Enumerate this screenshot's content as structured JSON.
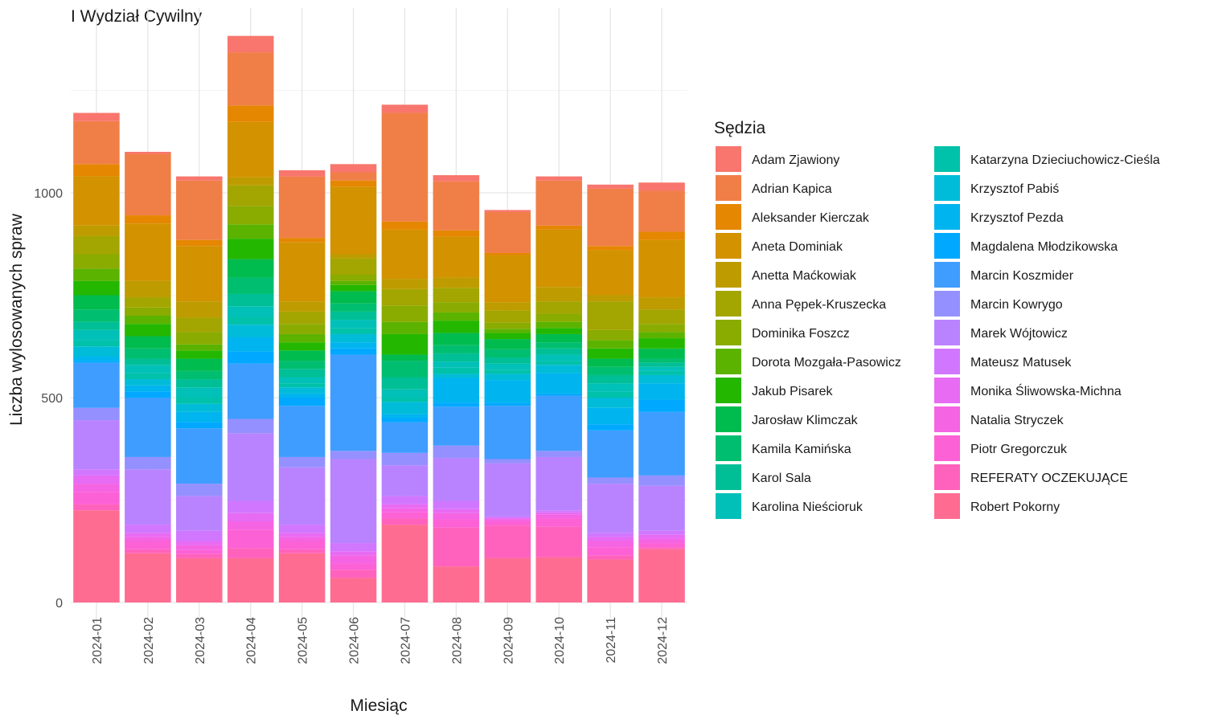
{
  "chart_data": {
    "type": "bar",
    "stacked": true,
    "title": "I Wydział Cywilny",
    "xlabel": "Miesiąc",
    "ylabel": "Liczba wylosowanych spraw",
    "ylim": [
      0,
      1400
    ],
    "yticks": [
      0,
      500,
      1000
    ],
    "grid": true,
    "legend_title": "Sędzia",
    "legend_position": "right",
    "categories": [
      "2024-01",
      "2024-02",
      "2024-03",
      "2024-04",
      "2024-05",
      "2024-06",
      "2024-07",
      "2024-08",
      "2024-09",
      "2024-10",
      "2024-11",
      "2024-12"
    ],
    "series": [
      {
        "name": "Robert Pokorny",
        "color": "#FF6C91",
        "values": [
          225,
          120,
          108,
          108,
          120,
          60,
          190,
          88,
          108,
          110,
          105,
          130
        ]
      },
      {
        "name": "REFERATY OCZEKUJĄCE",
        "color": "#FF62BC",
        "values": [
          15,
          10,
          10,
          25,
          10,
          20,
          15,
          95,
          80,
          75,
          10,
          5
        ]
      },
      {
        "name": "Piotr Gregorczuk",
        "color": "#FC61D5",
        "values": [
          30,
          20,
          10,
          45,
          20,
          15,
          15,
          20,
          10,
          20,
          20,
          10
        ]
      },
      {
        "name": "Natalia Stryczek",
        "color": "#F564E3",
        "values": [
          20,
          10,
          12,
          20,
          10,
          20,
          10,
          15,
          5,
          10,
          15,
          10
        ]
      },
      {
        "name": "Monika Śliwowska-Michna",
        "color": "#E76BF3",
        "values": [
          20,
          10,
          10,
          20,
          10,
          10,
          10,
          10,
          3,
          5,
          10,
          10
        ]
      },
      {
        "name": "Mateusz Matusek",
        "color": "#D177FF",
        "values": [
          15,
          20,
          25,
          30,
          20,
          20,
          20,
          20,
          4,
          5,
          10,
          10
        ]
      },
      {
        "name": "Marek Wójtowicz",
        "color": "#B983FF",
        "values": [
          120,
          135,
          85,
          165,
          140,
          205,
          75,
          105,
          130,
          130,
          120,
          110
        ]
      },
      {
        "name": "Marcin Kowrygo",
        "color": "#9590FF",
        "values": [
          30,
          30,
          30,
          35,
          25,
          20,
          30,
          30,
          10,
          15,
          15,
          25
        ]
      },
      {
        "name": "Marcin Koszmider",
        "color": "#3F9DFF",
        "values": [
          110,
          145,
          135,
          135,
          125,
          235,
          75,
          95,
          130,
          135,
          115,
          155
        ]
      },
      {
        "name": "Magdalena Młodzikowska",
        "color": "#00A9FF",
        "values": [
          5,
          15,
          15,
          30,
          20,
          15,
          10,
          10,
          8,
          5,
          15,
          30
        ]
      },
      {
        "name": "Krzysztof Pezda",
        "color": "#00B4EF",
        "values": [
          10,
          15,
          25,
          35,
          10,
          15,
          10,
          60,
          55,
          50,
          40,
          40
        ]
      },
      {
        "name": "Krzysztof Pabiś",
        "color": "#00BCD8",
        "values": [
          25,
          15,
          20,
          30,
          15,
          20,
          30,
          10,
          15,
          20,
          25,
          20
        ]
      },
      {
        "name": "Katarzyna Dzieciuchowicz-Cieśla",
        "color": "#00C1AA",
        "values": [
          15,
          15,
          15,
          20,
          10,
          15,
          10,
          15,
          10,
          10,
          15,
          10
        ]
      },
      {
        "name": "Karolina Nieścioruk",
        "color": "#00C0B8",
        "values": [
          25,
          20,
          25,
          25,
          15,
          20,
          20,
          15,
          15,
          15,
          20,
          10
        ]
      },
      {
        "name": "Karol Sala",
        "color": "#00BF96",
        "values": [
          20,
          15,
          20,
          30,
          20,
          20,
          30,
          20,
          15,
          15,
          20,
          10
        ]
      },
      {
        "name": "Kamila Kamińska",
        "color": "#00BE70",
        "values": [
          30,
          25,
          20,
          40,
          20,
          20,
          40,
          20,
          20,
          15,
          20,
          10
        ]
      },
      {
        "name": "Jarosław Klimczak",
        "color": "#00BB4E",
        "values": [
          35,
          30,
          30,
          45,
          25,
          30,
          15,
          30,
          25,
          20,
          20,
          25
        ]
      },
      {
        "name": "Jakub Pisarek",
        "color": "#24B700",
        "values": [
          35,
          30,
          20,
          50,
          20,
          15,
          50,
          30,
          15,
          15,
          25,
          25
        ]
      },
      {
        "name": "Dorota Mozgała-Pasowicz",
        "color": "#5BB300",
        "values": [
          30,
          20,
          15,
          35,
          20,
          10,
          30,
          20,
          10,
          15,
          20,
          15
        ]
      },
      {
        "name": "Dominika Foszcz",
        "color": "#8AAB00",
        "values": [
          35,
          20,
          30,
          45,
          25,
          15,
          40,
          25,
          15,
          20,
          25,
          20
        ]
      },
      {
        "name": "Anna Pępek-Kruszecka",
        "color": "#A3A500",
        "values": [
          45,
          25,
          35,
          50,
          30,
          40,
          40,
          35,
          30,
          30,
          70,
          35
        ]
      },
      {
        "name": "Anetta Maćkowiak",
        "color": "#BE9C00",
        "values": [
          25,
          40,
          40,
          20,
          25,
          10,
          25,
          25,
          20,
          35,
          15,
          30
        ]
      },
      {
        "name": "Aneta Dominiak",
        "color": "#D39200",
        "values": [
          120,
          140,
          135,
          135,
          145,
          165,
          120,
          100,
          115,
          140,
          110,
          140
        ]
      },
      {
        "name": "Aleksander Kierczak",
        "color": "#E58700",
        "values": [
          30,
          20,
          15,
          40,
          10,
          15,
          20,
          15,
          5,
          10,
          10,
          20
        ]
      },
      {
        "name": "Adrian Kapica",
        "color": "#F07F47",
        "values": [
          105,
          150,
          145,
          130,
          150,
          20,
          265,
          120,
          100,
          110,
          140,
          100
        ]
      },
      {
        "name": "Adam Zjawiony",
        "color": "#F8766D",
        "values": [
          20,
          5,
          10,
          40,
          15,
          20,
          20,
          15,
          5,
          10,
          10,
          20
        ]
      }
    ]
  },
  "legend": {
    "title": "Sędzia",
    "items": [
      {
        "label": "Adam Zjawiony",
        "color": "#F8766D"
      },
      {
        "label": "Adrian Kapica",
        "color": "#F07F47"
      },
      {
        "label": "Aleksander Kierczak",
        "color": "#E58700"
      },
      {
        "label": "Aneta Dominiak",
        "color": "#D39200"
      },
      {
        "label": "Anetta Maćkowiak",
        "color": "#BE9C00"
      },
      {
        "label": "Anna Pępek-Kruszecka",
        "color": "#A3A500"
      },
      {
        "label": "Dominika Foszcz",
        "color": "#8AAB00"
      },
      {
        "label": "Dorota Mozgała-Pasowicz",
        "color": "#5BB300"
      },
      {
        "label": "Jakub Pisarek",
        "color": "#24B700"
      },
      {
        "label": "Jarosław Klimczak",
        "color": "#00BB4E"
      },
      {
        "label": "Kamila Kamińska",
        "color": "#00BE70"
      },
      {
        "label": "Karol Sala",
        "color": "#00BF96"
      },
      {
        "label": "Karolina Nieścioruk",
        "color": "#00C0B8"
      },
      {
        "label": "Katarzyna Dzieciuchowicz-Cieśla",
        "color": "#00C1AA"
      },
      {
        "label": "Krzysztof Pabiś",
        "color": "#00BCD8"
      },
      {
        "label": "Krzysztof Pezda",
        "color": "#00B4EF"
      },
      {
        "label": "Magdalena Młodzikowska",
        "color": "#00A9FF"
      },
      {
        "label": "Marcin Koszmider",
        "color": "#3F9DFF"
      },
      {
        "label": "Marcin Kowrygo",
        "color": "#9590FF"
      },
      {
        "label": "Marek Wójtowicz",
        "color": "#B983FF"
      },
      {
        "label": "Mateusz Matusek",
        "color": "#D177FF"
      },
      {
        "label": "Monika Śliwowska-Michna",
        "color": "#E76BF3"
      },
      {
        "label": "Natalia Stryczek",
        "color": "#F564E3"
      },
      {
        "label": "Piotr Gregorczuk",
        "color": "#FC61D5"
      },
      {
        "label": "REFERATY OCZEKUJĄCE",
        "color": "#FF62BC"
      },
      {
        "label": "Robert Pokorny",
        "color": "#FF6C91"
      }
    ]
  }
}
